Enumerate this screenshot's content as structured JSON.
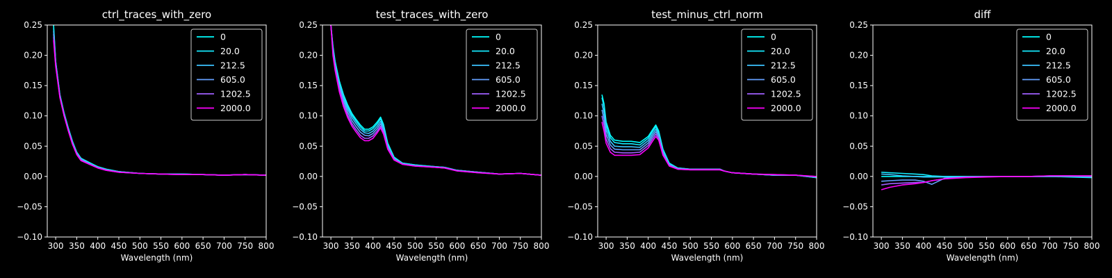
{
  "figure": {
    "background": "#000000",
    "axis_color": "#ffffff"
  },
  "chart_data": [
    {
      "type": "line",
      "title": "ctrl_traces_with_zero",
      "xlabel": "Wavelength (nm)",
      "ylabel": "",
      "xlim": [
        280,
        800
      ],
      "ylim": [
        -0.1,
        0.25
      ],
      "xticks": [
        "300",
        "350",
        "400",
        "450",
        "500",
        "550",
        "600",
        "650",
        "700",
        "750",
        "800"
      ],
      "yticks": [
        "0.25",
        "0.20",
        "0.15",
        "0.10",
        "0.05",
        "0.00",
        "−0.05",
        "−0.10"
      ],
      "grid": false,
      "legend": "top-right",
      "x": [
        295,
        300,
        310,
        320,
        330,
        340,
        350,
        360,
        380,
        400,
        420,
        450,
        500,
        550,
        600,
        650,
        700,
        750,
        800
      ],
      "series": [
        {
          "name": "0",
          "color": "#00ffff",
          "values": [
            0.25,
            0.19,
            0.135,
            0.105,
            0.08,
            0.058,
            0.04,
            0.03,
            0.023,
            0.016,
            0.012,
            0.008,
            0.005,
            0.004,
            0.004,
            0.003,
            0.002,
            0.003,
            0.002
          ]
        },
        {
          "name": "20.0",
          "color": "#14ebff",
          "values": [
            0.245,
            0.19,
            0.134,
            0.104,
            0.079,
            0.057,
            0.04,
            0.03,
            0.022,
            0.016,
            0.012,
            0.008,
            0.005,
            0.004,
            0.004,
            0.003,
            0.002,
            0.003,
            0.002
          ]
        },
        {
          "name": "212.5",
          "color": "#3cc3ff",
          "values": [
            0.24,
            0.188,
            0.133,
            0.103,
            0.078,
            0.056,
            0.039,
            0.029,
            0.022,
            0.015,
            0.011,
            0.008,
            0.005,
            0.004,
            0.004,
            0.003,
            0.002,
            0.003,
            0.002
          ]
        },
        {
          "name": "605.0",
          "color": "#64a0ff",
          "values": [
            0.235,
            0.186,
            0.132,
            0.102,
            0.077,
            0.055,
            0.038,
            0.028,
            0.021,
            0.015,
            0.011,
            0.007,
            0.005,
            0.004,
            0.003,
            0.003,
            0.002,
            0.003,
            0.002
          ]
        },
        {
          "name": "1202.5",
          "color": "#a05fff",
          "values": [
            0.23,
            0.184,
            0.131,
            0.101,
            0.076,
            0.054,
            0.037,
            0.027,
            0.02,
            0.014,
            0.01,
            0.007,
            0.005,
            0.004,
            0.003,
            0.003,
            0.002,
            0.003,
            0.002
          ]
        },
        {
          "name": "2000.0",
          "color": "#ff00ff",
          "values": [
            0.225,
            0.182,
            0.13,
            0.1,
            0.075,
            0.053,
            0.036,
            0.026,
            0.02,
            0.014,
            0.01,
            0.007,
            0.005,
            0.004,
            0.003,
            0.003,
            0.002,
            0.003,
            0.002
          ]
        }
      ]
    },
    {
      "type": "line",
      "title": "test_traces_with_zero",
      "xlabel": "Wavelength (nm)",
      "ylabel": "",
      "xlim": [
        280,
        800
      ],
      "ylim": [
        -0.1,
        0.25
      ],
      "xticks": [
        "300",
        "350",
        "400",
        "450",
        "500",
        "550",
        "600",
        "650",
        "700",
        "750",
        "800"
      ],
      "yticks": [
        "0.25",
        "0.20",
        "0.15",
        "0.10",
        "0.05",
        "0.00",
        "−0.05",
        "−0.10"
      ],
      "grid": false,
      "legend": "top-right",
      "x": [
        300,
        305,
        310,
        320,
        330,
        340,
        350,
        360,
        370,
        380,
        390,
        400,
        410,
        418,
        425,
        435,
        450,
        470,
        500,
        550,
        570,
        600,
        650,
        700,
        750,
        800
      ],
      "series": [
        {
          "name": "0",
          "color": "#00ffff",
          "values": [
            0.25,
            0.215,
            0.19,
            0.158,
            0.135,
            0.118,
            0.104,
            0.094,
            0.085,
            0.078,
            0.078,
            0.082,
            0.09,
            0.098,
            0.086,
            0.055,
            0.032,
            0.022,
            0.019,
            0.016,
            0.015,
            0.01,
            0.007,
            0.004,
            0.005,
            0.002
          ]
        },
        {
          "name": "20.0",
          "color": "#14ebff",
          "values": [
            0.25,
            0.213,
            0.188,
            0.155,
            0.132,
            0.115,
            0.101,
            0.091,
            0.082,
            0.075,
            0.075,
            0.079,
            0.087,
            0.095,
            0.083,
            0.053,
            0.031,
            0.022,
            0.019,
            0.016,
            0.015,
            0.01,
            0.007,
            0.004,
            0.005,
            0.002
          ]
        },
        {
          "name": "212.5",
          "color": "#3cc3ff",
          "values": [
            0.25,
            0.21,
            0.185,
            0.152,
            0.128,
            0.111,
            0.097,
            0.087,
            0.078,
            0.072,
            0.071,
            0.075,
            0.083,
            0.091,
            0.08,
            0.051,
            0.03,
            0.021,
            0.018,
            0.016,
            0.015,
            0.01,
            0.007,
            0.004,
            0.005,
            0.002
          ]
        },
        {
          "name": "605.0",
          "color": "#64a0ff",
          "values": [
            0.25,
            0.207,
            0.182,
            0.148,
            0.124,
            0.106,
            0.092,
            0.082,
            0.073,
            0.068,
            0.067,
            0.071,
            0.079,
            0.087,
            0.076,
            0.049,
            0.029,
            0.021,
            0.018,
            0.015,
            0.014,
            0.01,
            0.007,
            0.004,
            0.005,
            0.002
          ]
        },
        {
          "name": "1202.5",
          "color": "#a05fff",
          "values": [
            0.25,
            0.204,
            0.178,
            0.144,
            0.119,
            0.101,
            0.087,
            0.077,
            0.068,
            0.063,
            0.063,
            0.067,
            0.075,
            0.083,
            0.073,
            0.047,
            0.028,
            0.02,
            0.017,
            0.015,
            0.014,
            0.009,
            0.006,
            0.004,
            0.005,
            0.002
          ]
        },
        {
          "name": "2000.0",
          "color": "#ff00ff",
          "values": [
            0.25,
            0.2,
            0.175,
            0.14,
            0.115,
            0.097,
            0.083,
            0.073,
            0.064,
            0.059,
            0.059,
            0.063,
            0.072,
            0.08,
            0.07,
            0.045,
            0.027,
            0.02,
            0.017,
            0.015,
            0.014,
            0.009,
            0.006,
            0.004,
            0.005,
            0.002
          ]
        }
      ]
    },
    {
      "type": "line",
      "title": "test_minus_ctrl_norm",
      "xlabel": "Wavelength (nm)",
      "ylabel": "",
      "xlim": [
        280,
        800
      ],
      "ylim": [
        -0.1,
        0.25
      ],
      "xticks": [
        "300",
        "350",
        "400",
        "450",
        "500",
        "550",
        "600",
        "650",
        "700",
        "750",
        "800"
      ],
      "yticks": [
        "0.25",
        "0.20",
        "0.15",
        "0.10",
        "0.05",
        "0.00",
        "−0.05",
        "−0.10"
      ],
      "grid": false,
      "legend": "top-right",
      "x": [
        290,
        295,
        300,
        310,
        320,
        340,
        360,
        380,
        400,
        410,
        418,
        425,
        435,
        450,
        470,
        500,
        550,
        570,
        580,
        600,
        650,
        700,
        750,
        800
      ],
      "series": [
        {
          "name": "0",
          "color": "#00ffff",
          "values": [
            0.135,
            0.12,
            0.09,
            0.068,
            0.06,
            0.058,
            0.058,
            0.056,
            0.066,
            0.077,
            0.085,
            0.075,
            0.045,
            0.022,
            0.014,
            0.012,
            0.012,
            0.012,
            0.009,
            0.006,
            0.004,
            0.002,
            0.002,
            -0.002
          ]
        },
        {
          "name": "20.0",
          "color": "#14ebff",
          "values": [
            0.13,
            0.115,
            0.085,
            0.064,
            0.056,
            0.054,
            0.054,
            0.052,
            0.063,
            0.074,
            0.082,
            0.072,
            0.043,
            0.021,
            0.014,
            0.012,
            0.012,
            0.012,
            0.009,
            0.006,
            0.004,
            0.002,
            0.002,
            -0.002
          ]
        },
        {
          "name": "212.5",
          "color": "#3cc3ff",
          "values": [
            0.12,
            0.105,
            0.078,
            0.058,
            0.05,
            0.049,
            0.049,
            0.048,
            0.059,
            0.07,
            0.078,
            0.069,
            0.041,
            0.02,
            0.013,
            0.012,
            0.012,
            0.012,
            0.009,
            0.006,
            0.004,
            0.002,
            0.002,
            -0.001
          ]
        },
        {
          "name": "605.0",
          "color": "#64a0ff",
          "values": [
            0.11,
            0.095,
            0.07,
            0.052,
            0.045,
            0.044,
            0.044,
            0.044,
            0.055,
            0.066,
            0.074,
            0.066,
            0.039,
            0.019,
            0.013,
            0.012,
            0.012,
            0.012,
            0.009,
            0.006,
            0.004,
            0.002,
            0.002,
            -0.001
          ]
        },
        {
          "name": "1202.5",
          "color": "#a05fff",
          "values": [
            0.1,
            0.085,
            0.062,
            0.046,
            0.04,
            0.039,
            0.039,
            0.04,
            0.051,
            0.062,
            0.07,
            0.063,
            0.037,
            0.018,
            0.012,
            0.011,
            0.011,
            0.011,
            0.009,
            0.006,
            0.004,
            0.003,
            0.002,
            0.0
          ]
        },
        {
          "name": "2000.0",
          "color": "#ff00ff",
          "values": [
            0.09,
            0.075,
            0.055,
            0.04,
            0.035,
            0.035,
            0.035,
            0.036,
            0.047,
            0.058,
            0.066,
            0.06,
            0.035,
            0.017,
            0.012,
            0.011,
            0.011,
            0.011,
            0.009,
            0.006,
            0.004,
            0.003,
            0.002,
            0.0
          ]
        }
      ]
    },
    {
      "type": "line",
      "title": "diff",
      "xlabel": "Wavelength (nm)",
      "ylabel": "",
      "xlim": [
        280,
        800
      ],
      "ylim": [
        -0.1,
        0.25
      ],
      "xticks": [
        "300",
        "350",
        "400",
        "450",
        "500",
        "550",
        "600",
        "650",
        "700",
        "750",
        "800"
      ],
      "yticks": [
        "0.25",
        "0.20",
        "0.15",
        "0.10",
        "0.05",
        "0.00",
        "−0.05",
        "−0.10"
      ],
      "grid": false,
      "legend": "top-right",
      "x": [
        300,
        320,
        350,
        380,
        400,
        420,
        450,
        500,
        550,
        600,
        650,
        700,
        750,
        800
      ],
      "series": [
        {
          "name": "0",
          "color": "#00ffff",
          "values": [
            0.0,
            0.0,
            0.0,
            0.0,
            0.0,
            0.0,
            0.0,
            0.0,
            0.0,
            0.0,
            0.0,
            0.0,
            0.0,
            0.0
          ]
        },
        {
          "name": "20.0",
          "color": "#14ebff",
          "values": [
            0.007,
            0.006,
            0.005,
            0.004,
            0.003,
            0.001,
            0.0,
            0.0,
            0.0,
            0.0,
            0.0,
            0.0,
            -0.001,
            -0.002
          ]
        },
        {
          "name": "212.5",
          "color": "#3cc3ff",
          "values": [
            0.004,
            0.003,
            0.001,
            0.0,
            -0.001,
            -0.001,
            -0.001,
            -0.001,
            0.0,
            0.0,
            0.0,
            0.0,
            0.0,
            -0.001
          ]
        },
        {
          "name": "605.0",
          "color": "#64a0ff",
          "values": [
            -0.008,
            -0.007,
            -0.006,
            -0.006,
            -0.008,
            -0.013,
            -0.003,
            -0.001,
            0.0,
            0.0,
            0.0,
            0.001,
            0.001,
            0.0
          ]
        },
        {
          "name": "1202.5",
          "color": "#a05fff",
          "values": [
            -0.014,
            -0.012,
            -0.011,
            -0.01,
            -0.01,
            -0.007,
            -0.004,
            -0.001,
            0.0,
            0.0,
            0.0,
            0.001,
            0.001,
            0.001
          ]
        },
        {
          "name": "2000.0",
          "color": "#ff00ff",
          "values": [
            -0.022,
            -0.018,
            -0.014,
            -0.012,
            -0.01,
            -0.007,
            -0.004,
            -0.002,
            -0.001,
            0.0,
            0.0,
            0.001,
            0.001,
            0.001
          ]
        }
      ]
    }
  ]
}
